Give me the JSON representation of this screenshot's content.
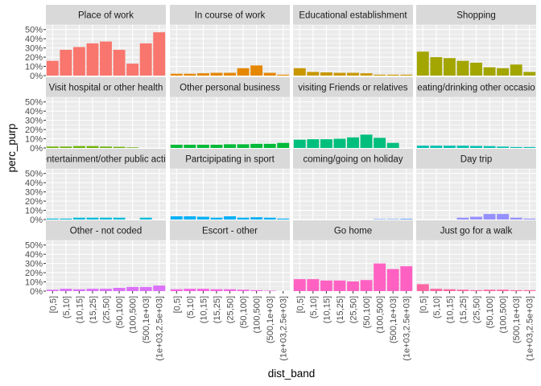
{
  "chart_data": {
    "type": "bar",
    "layout": "facet_wrap 4x4",
    "xlabel": "dist_band",
    "ylabel": "perc_purp",
    "categories": [
      "[0,5]",
      "(5,10]",
      "(10,15]",
      "(15,25]",
      "(25,50]",
      "(50,100]",
      "(100,500]",
      "(500,1e+03]",
      "(1e+03,2.5e+03]"
    ],
    "y_ticks": [
      "0%",
      "10%",
      "20%",
      "30%",
      "40%",
      "50%"
    ],
    "ylim": [
      0,
      0.55
    ],
    "grid": true,
    "legend": "none",
    "facets": [
      {
        "name": "Place of work",
        "color": "#F8766D",
        "values": [
          0.16,
          0.28,
          0.31,
          0.35,
          0.37,
          0.28,
          0.13,
          0.35,
          0.47
        ]
      },
      {
        "name": "In course of work",
        "color": "#E58700",
        "values": [
          0.02,
          0.02,
          0.025,
          0.03,
          0.03,
          0.08,
          0.11,
          0.03,
          0.01
        ]
      },
      {
        "name": "Educational establishment",
        "color": "#C99800",
        "values": [
          0.08,
          0.04,
          0.035,
          0.03,
          0.03,
          0.025,
          0.01,
          0.01,
          0.01
        ]
      },
      {
        "name": "Shopping",
        "color": "#A3A500",
        "values": [
          0.26,
          0.2,
          0.19,
          0.16,
          0.14,
          0.09,
          0.08,
          0.12,
          0.04
        ]
      },
      {
        "name": "Visit hospital or other health",
        "color": "#6BB100",
        "values": [
          0.015,
          0.015,
          0.02,
          0.02,
          0.015,
          0.012,
          0.006,
          0,
          0
        ]
      },
      {
        "name": "Other personal business",
        "color": "#00BA38",
        "values": [
          0.035,
          0.035,
          0.035,
          0.035,
          0.04,
          0.04,
          0.045,
          0.045,
          0.055
        ]
      },
      {
        "name": "visiting Friends or relatives",
        "color": "#00BF7D",
        "values": [
          0.09,
          0.095,
          0.095,
          0.1,
          0.115,
          0.145,
          0.11,
          0.055,
          0
        ]
      },
      {
        "name": "eating/drinking other occasio",
        "color": "#00C0AF",
        "values": [
          0.025,
          0.025,
          0.025,
          0.025,
          0.022,
          0.02,
          0.015,
          0.01,
          0.01
        ]
      },
      {
        "name": "entertainment/other public activ",
        "color": "#00BCD8",
        "values": [
          0.01,
          0.01,
          0.02,
          0.02,
          0.02,
          0.02,
          0,
          0.02,
          0
        ]
      },
      {
        "name": "Partcipipating in sport",
        "color": "#00B0F6",
        "values": [
          0.035,
          0.035,
          0.03,
          0.02,
          0.035,
          0.02,
          0.025,
          0.02,
          0.01
        ]
      },
      {
        "name": "coming/going on holiday",
        "color": "#619CFF",
        "values": [
          0,
          0,
          0,
          0,
          0,
          0,
          0.005,
          0.005,
          0.008
        ]
      },
      {
        "name": "Day trip",
        "color": "#9590FF",
        "values": [
          0,
          0,
          0,
          0.02,
          0.03,
          0.06,
          0.06,
          0.02,
          0.01
        ]
      },
      {
        "name": "Other - not coded",
        "color": "#DC71FA",
        "values": [
          0.015,
          0.025,
          0.02,
          0.025,
          0.025,
          0.035,
          0.045,
          0.045,
          0.06
        ]
      },
      {
        "name": "Escort - other",
        "color": "#F564E3",
        "values": [
          0.02,
          0.025,
          0.025,
          0.02,
          0.02,
          0.015,
          0.01,
          0.005,
          0
        ]
      },
      {
        "name": "Go home",
        "color": "#FF61C3",
        "values": [
          0.13,
          0.13,
          0.115,
          0.115,
          0.105,
          0.12,
          0.3,
          0.24,
          0.27
        ]
      },
      {
        "name": "Just go for a walk",
        "color": "#FF67A4",
        "values": [
          0.075,
          0.025,
          0.02,
          0.015,
          0.01,
          0.015,
          0.015,
          0.01,
          0.01
        ]
      }
    ]
  }
}
